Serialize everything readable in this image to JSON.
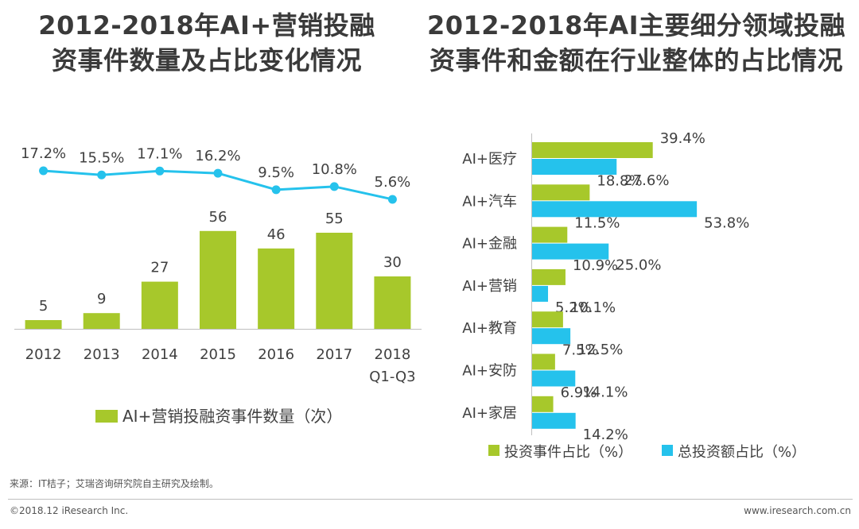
{
  "titles": {
    "left_line1": "2012-2018年AI+营销投融",
    "left_line2": "资事件数量及占比变化情况",
    "right_line1": "2012-2018年AI主要细分领域投融",
    "right_line2": "资事件和金额在行业整体的占比情况"
  },
  "chart_data": [
    {
      "type": "bar",
      "categories": [
        "2012",
        "2013",
        "2014",
        "2015",
        "2016",
        "2017",
        "2018\nQ1-Q3"
      ],
      "series": [
        {
          "name": "AI+营销投融资事件数量（次）",
          "values": [
            5,
            9,
            27,
            56,
            46,
            55,
            30
          ],
          "color": "#a7c82b"
        },
        {
          "type": "line",
          "values": [
            17.2,
            15.5,
            17.1,
            16.2,
            9.5,
            10.8,
            5.6
          ],
          "labels": [
            "17.2%",
            "15.5%",
            "17.1%",
            "16.2%",
            "9.5%",
            "10.8%",
            "5.6%"
          ],
          "color": "#25c2ec"
        }
      ],
      "legend": "bottom"
    },
    {
      "type": "bar",
      "orientation": "horizontal",
      "categories": [
        "AI+医疗",
        "AI+汽车",
        "AI+金融",
        "AI+营销",
        "AI+教育",
        "AI+安防",
        "AI+家居"
      ],
      "series": [
        {
          "name": "投资事件占比（%）",
          "values": [
            39.4,
            18.8,
            11.5,
            10.9,
            10.1,
            7.5,
            6.9
          ],
          "color": "#a7c82b"
        },
        {
          "name": "总投资额占比（%）",
          "values": [
            27.6,
            53.8,
            25.0,
            5.2,
            12.5,
            14.1,
            14.2
          ],
          "color": "#25c2ec"
        }
      ],
      "legend": "bottom"
    }
  ],
  "footer": {
    "source": "来源：IT桔子；艾瑞咨询研究院自主研究及绘制。",
    "copyright": "©2018.12 iResearch Inc.",
    "website": "www.iresearch.com.cn"
  }
}
